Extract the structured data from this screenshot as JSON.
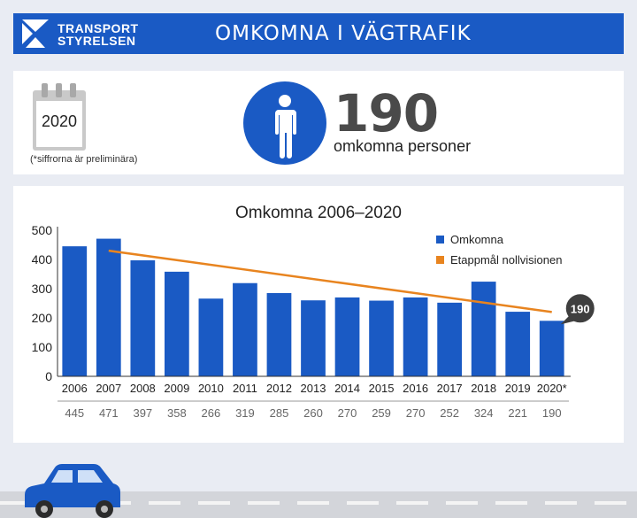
{
  "header": {
    "logo_line1": "TRANSPORT",
    "logo_line2": "STYRELSEN",
    "title": "OMKOMNA I VÄGTRAFIK",
    "background_color": "#1a5ac4"
  },
  "summary": {
    "year": "2020",
    "note": "(*siffrorna är preliminära)",
    "count": "190",
    "caption": "omkomna personer",
    "icons": [
      "calendar-icon",
      "person-icon"
    ]
  },
  "chart_data": {
    "type": "bar",
    "title": "Omkomna 2006–2020",
    "categories": [
      "2006",
      "2007",
      "2008",
      "2009",
      "2010",
      "2011",
      "2012",
      "2013",
      "2014",
      "2015",
      "2016",
      "2017",
      "2018",
      "2019",
      "2020*"
    ],
    "value_labels": [
      "445",
      "471",
      "397",
      "358",
      "266",
      "319",
      "285",
      "260",
      "270",
      "259",
      "270",
      "252",
      "324",
      "221",
      "190"
    ],
    "series": [
      {
        "name": "Omkomna",
        "type": "bar",
        "color": "#1a5ac4",
        "values": [
          445,
          471,
          397,
          358,
          266,
          319,
          285,
          260,
          270,
          259,
          270,
          252,
          324,
          221,
          190
        ]
      },
      {
        "name": "Etappmål nollvisionen",
        "type": "line",
        "color": "#e8841f",
        "x": [
          "2007",
          "2020*"
        ],
        "values": [
          430,
          220
        ]
      }
    ],
    "ylim": [
      0,
      500
    ],
    "yticks": [
      0,
      100,
      200,
      300,
      400,
      500
    ],
    "ytick_labels": [
      "0",
      "100",
      "200",
      "300",
      "400",
      "500"
    ],
    "grid": false,
    "legend_position": "top-right",
    "callout": {
      "category": "2020*",
      "text": "190"
    }
  }
}
